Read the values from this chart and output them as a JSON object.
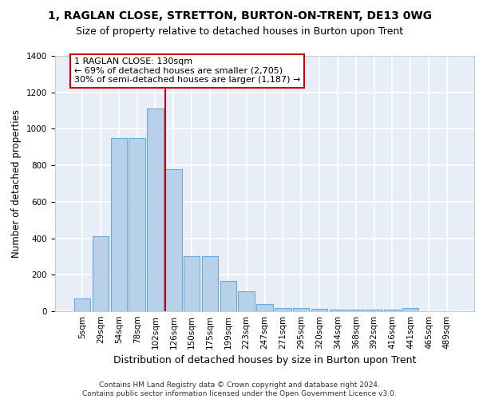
{
  "title1": "1, RAGLAN CLOSE, STRETTON, BURTON-ON-TRENT, DE13 0WG",
  "title2": "Size of property relative to detached houses in Burton upon Trent",
  "xlabel": "Distribution of detached houses by size in Burton upon Trent",
  "ylabel": "Number of detached properties",
  "footnote": "Contains HM Land Registry data © Crown copyright and database right 2024.\nContains public sector information licensed under the Open Government Licence v3.0.",
  "bar_labels": [
    "5sqm",
    "29sqm",
    "54sqm",
    "78sqm",
    "102sqm",
    "126sqm",
    "150sqm",
    "175sqm",
    "199sqm",
    "223sqm",
    "247sqm",
    "271sqm",
    "295sqm",
    "320sqm",
    "344sqm",
    "368sqm",
    "392sqm",
    "416sqm",
    "441sqm",
    "465sqm",
    "489sqm"
  ],
  "bar_values": [
    70,
    410,
    950,
    950,
    1110,
    780,
    300,
    300,
    165,
    108,
    38,
    18,
    18,
    15,
    10,
    10,
    10,
    10,
    18,
    0,
    0
  ],
  "bar_color": "#b8d0e8",
  "bar_edgecolor": "#6aaad4",
  "bar_linewidth": 0.8,
  "vline_color": "#cc0000",
  "annotation_text": "1 RAGLAN CLOSE: 130sqm\n← 69% of detached houses are smaller (2,705)\n30% of semi-detached houses are larger (1,187) →",
  "annotation_box_edgecolor": "#cc0000",
  "annotation_box_facecolor": "#ffffff",
  "ylim": [
    0,
    1400
  ],
  "yticks": [
    0,
    200,
    400,
    600,
    800,
    1000,
    1200,
    1400
  ],
  "bg_color": "#e8eef8",
  "grid_color": "#ffffff",
  "title1_fontsize": 10,
  "title2_fontsize": 9,
  "xlabel_fontsize": 9,
  "ylabel_fontsize": 8.5,
  "tick_fontsize": 7.5,
  "annotation_fontsize": 8,
  "footnote_fontsize": 6.5
}
